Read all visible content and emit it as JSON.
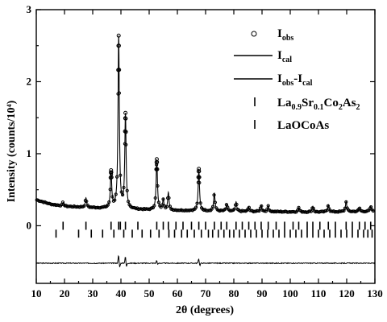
{
  "chart_data": {
    "type": "line",
    "xlabel": "2θ (degrees)",
    "ylabel": "Intensity (counts/10⁴)",
    "xlim": [
      10,
      130
    ],
    "ylim": [
      -0.8,
      3.0
    ],
    "x_ticks": [
      "10",
      "20",
      "30",
      "40",
      "50",
      "60",
      "70",
      "80",
      "90",
      "100",
      "110",
      "120",
      "130"
    ],
    "y_ticks": [
      "0",
      "1",
      "2",
      "3"
    ],
    "legend": [
      {
        "key": "obs",
        "label": "I",
        "sub": "obs",
        "marker": "circle"
      },
      {
        "key": "cal",
        "label": "I",
        "sub": "cal",
        "marker": "line"
      },
      {
        "key": "diff",
        "label": "I",
        "sub1": "obs",
        "mid": "-I",
        "sub2": "cal",
        "marker": "line"
      },
      {
        "key": "phase1",
        "parts": [
          "La",
          "0.9",
          "Sr",
          "0.1",
          "Co",
          "2",
          "As",
          "2"
        ],
        "marker": "bar"
      },
      {
        "key": "phase2",
        "label": "LaOCoAs",
        "marker": "bar"
      }
    ],
    "background": [
      [
        10,
        0.36
      ],
      [
        15,
        0.3
      ],
      [
        20,
        0.27
      ],
      [
        30,
        0.25
      ],
      [
        50,
        0.22
      ],
      [
        80,
        0.2
      ],
      [
        110,
        0.19
      ],
      [
        130,
        0.2
      ]
    ],
    "peaks": [
      {
        "x": 19.5,
        "h": 0.05
      },
      {
        "x": 27.6,
        "h": 0.13
      },
      {
        "x": 36.5,
        "h": 0.5
      },
      {
        "x": 39.2,
        "h": 2.38
      },
      {
        "x": 41.6,
        "h": 1.3
      },
      {
        "x": 52.7,
        "h": 0.7
      },
      {
        "x": 55.0,
        "h": 0.14
      },
      {
        "x": 56.8,
        "h": 0.24
      },
      {
        "x": 67.6,
        "h": 0.58
      },
      {
        "x": 73.1,
        "h": 0.25
      },
      {
        "x": 77.5,
        "h": 0.1
      },
      {
        "x": 80.8,
        "h": 0.13
      },
      {
        "x": 85.3,
        "h": 0.06
      },
      {
        "x": 89.7,
        "h": 0.09
      },
      {
        "x": 92.2,
        "h": 0.08
      },
      {
        "x": 103.0,
        "h": 0.06
      },
      {
        "x": 108.0,
        "h": 0.08
      },
      {
        "x": 113.5,
        "h": 0.1
      },
      {
        "x": 119.8,
        "h": 0.14
      },
      {
        "x": 124.5,
        "h": 0.05
      },
      {
        "x": 128.5,
        "h": 0.07
      }
    ],
    "bragg_phase1": [
      19.5,
      27.6,
      36.5,
      39.2,
      39.8,
      41.6,
      46.0,
      52.7,
      55.0,
      56.8,
      59.5,
      62.0,
      65.0,
      67.6,
      70.0,
      73.1,
      75.5,
      77.5,
      80.8,
      83.0,
      85.3,
      87.5,
      89.7,
      92.2,
      95.0,
      98.0,
      101.0,
      103.0,
      106.0,
      108.0,
      110.5,
      113.5,
      116.0,
      119.8,
      122.0,
      124.5,
      126.5,
      128.5
    ],
    "bragg_phase1_y": 0.0,
    "bragg_phase2": [
      17.0,
      25.0,
      29.5,
      33.5,
      37.5,
      41.0,
      44.0,
      47.5,
      50.5,
      53.5,
      57.0,
      59.0,
      61.5,
      63.5,
      66.0,
      68.5,
      71.0,
      72.5,
      74.5,
      76.5,
      78.5,
      80.0,
      82.0,
      84.0,
      86.0,
      88.0,
      90.0,
      92.0,
      94.0,
      96.0,
      98.0,
      100.0,
      102.0,
      104.0,
      106.0,
      108.0,
      110.0,
      112.0,
      114.0,
      116.0,
      118.0,
      120.0,
      122.0,
      124.0,
      126.0,
      127.5,
      129.0
    ],
    "bragg_phase2_y": -0.11,
    "difference_baseline": -0.52,
    "difference_features": [
      {
        "x": 39.2,
        "d": 0.12
      },
      {
        "x": 41.6,
        "d": 0.1
      },
      {
        "x": 52.7,
        "d": 0.04
      },
      {
        "x": 67.6,
        "d": 0.07
      }
    ]
  }
}
